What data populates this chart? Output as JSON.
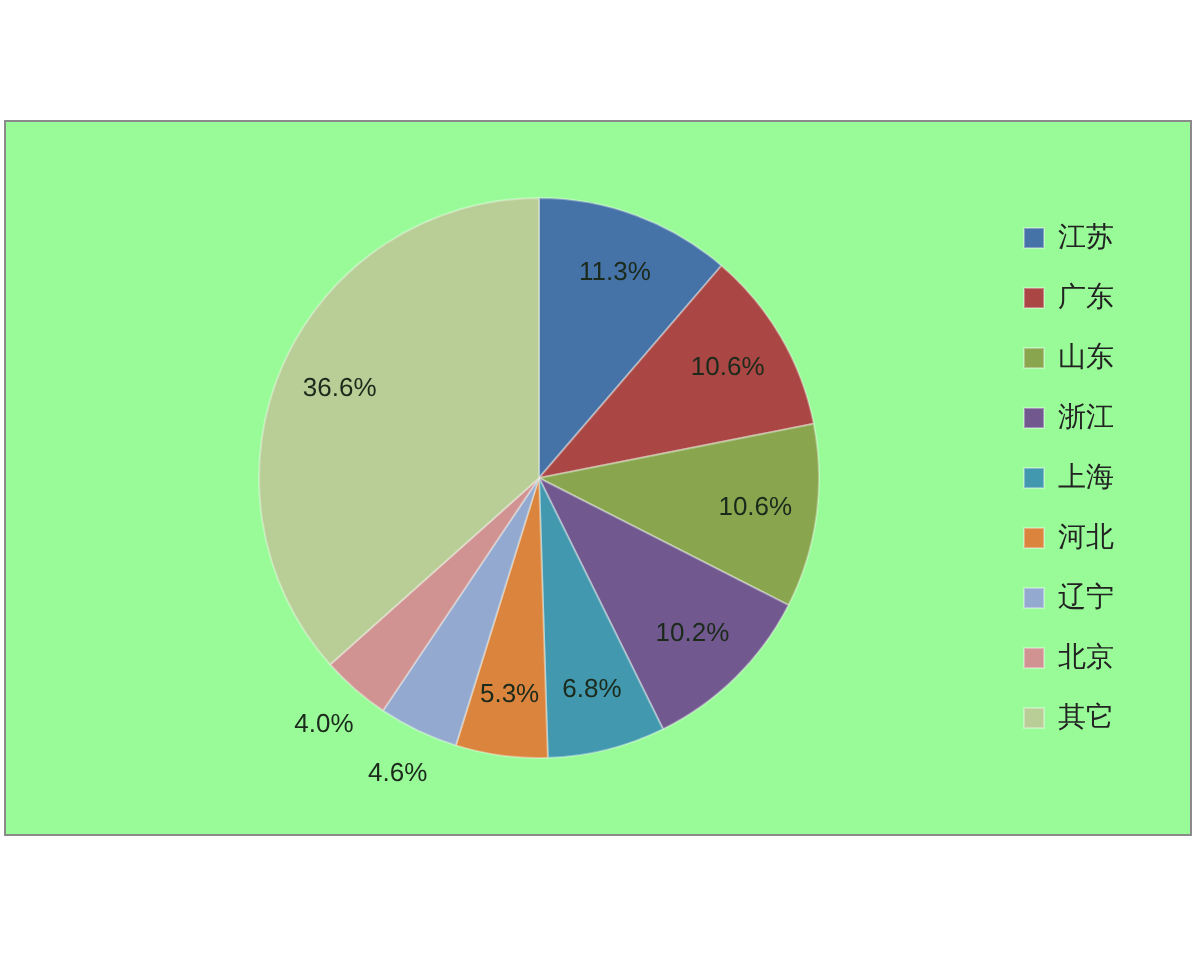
{
  "chart_data": {
    "type": "pie",
    "categories": [
      "江苏",
      "广东",
      "山东",
      "浙江",
      "上海",
      "河北",
      "辽宁",
      "北京",
      "其它"
    ],
    "values": [
      11.3,
      10.6,
      10.6,
      10.2,
      6.8,
      5.3,
      4.6,
      4.0,
      36.6
    ],
    "colors": [
      "#4572a7",
      "#aa4643",
      "#89a54e",
      "#71588f",
      "#4198af",
      "#db843d",
      "#93a9cf",
      "#d19392",
      "#b9cd96"
    ],
    "value_labels": [
      "11.3%",
      "10.6%",
      "10.6%",
      "10.2%",
      "6.8%",
      "5.3%",
      "4.6%",
      "4.0%",
      "36.6%"
    ],
    "legend": "right"
  }
}
